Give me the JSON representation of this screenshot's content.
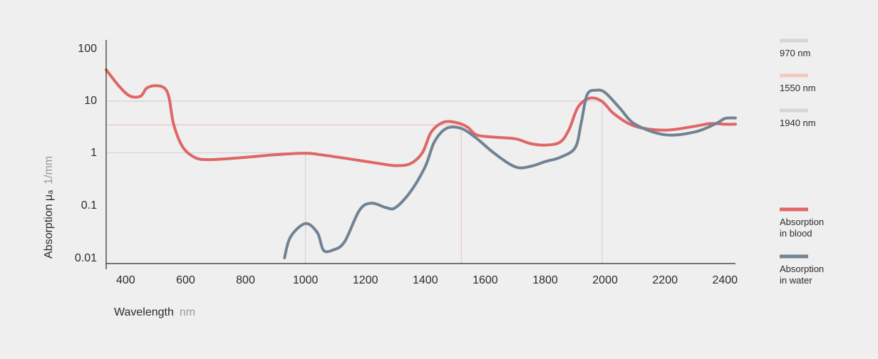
{
  "chart_data": {
    "type": "line",
    "xlabel": "Wavelength",
    "xunit": "nm",
    "ylabel": "Absorption μₐ",
    "yunit": "1/mm",
    "xlim": [
      335,
      2435
    ],
    "ylim": [
      0.01,
      100
    ],
    "yscale": "log",
    "x_ticks": [
      400,
      600,
      800,
      1000,
      1200,
      1400,
      1600,
      1800,
      2000,
      2200,
      2400
    ],
    "y_ticks": [
      {
        "value": 100,
        "label": "100"
      },
      {
        "value": 10,
        "label": "10"
      },
      {
        "value": 1,
        "label": "1"
      },
      {
        "value": 0.1,
        "label": "0.1"
      },
      {
        "value": 0.01,
        "label": "0.01"
      }
    ],
    "reference_lines": [
      {
        "name": "970 nm",
        "wavelength": 1000,
        "absorption": 1,
        "color": "#d5d5d5"
      },
      {
        "name": "1550 nm",
        "wavelength": 1520,
        "absorption": 3.4,
        "color": "#f2c8c0"
      },
      {
        "name": "1940 nm",
        "wavelength": 1990,
        "absorption": 9.6,
        "color": "#d5d5d5"
      }
    ],
    "series": [
      {
        "name": "Absorption\nin blood",
        "color": "#e06666",
        "points": [
          [
            335,
            38
          ],
          [
            380,
            18
          ],
          [
            415,
            12
          ],
          [
            450,
            12
          ],
          [
            470,
            17
          ],
          [
            500,
            19
          ],
          [
            530,
            17
          ],
          [
            545,
            11
          ],
          [
            560,
            3.5
          ],
          [
            590,
            1.3
          ],
          [
            630,
            0.82
          ],
          [
            680,
            0.74
          ],
          [
            800,
            0.82
          ],
          [
            900,
            0.92
          ],
          [
            1000,
            0.98
          ],
          [
            1050,
            0.92
          ],
          [
            1150,
            0.76
          ],
          [
            1250,
            0.62
          ],
          [
            1300,
            0.57
          ],
          [
            1350,
            0.62
          ],
          [
            1390,
            1.0
          ],
          [
            1420,
            2.5
          ],
          [
            1460,
            3.8
          ],
          [
            1500,
            3.8
          ],
          [
            1540,
            3.1
          ],
          [
            1570,
            2.2
          ],
          [
            1620,
            2.0
          ],
          [
            1700,
            1.85
          ],
          [
            1750,
            1.5
          ],
          [
            1800,
            1.4
          ],
          [
            1850,
            1.6
          ],
          [
            1880,
            2.8
          ],
          [
            1910,
            7.5
          ],
          [
            1950,
            11
          ],
          [
            1990,
            9.5
          ],
          [
            2030,
            5.5
          ],
          [
            2100,
            3.2
          ],
          [
            2200,
            2.7
          ],
          [
            2300,
            3.2
          ],
          [
            2350,
            3.6
          ],
          [
            2400,
            3.5
          ],
          [
            2435,
            3.5
          ]
        ]
      },
      {
        "name": "Absorption\nin water",
        "color": "#718393",
        "points": [
          [
            930,
            0.01
          ],
          [
            950,
            0.025
          ],
          [
            1000,
            0.045
          ],
          [
            1040,
            0.03
          ],
          [
            1060,
            0.014
          ],
          [
            1090,
            0.014
          ],
          [
            1130,
            0.02
          ],
          [
            1180,
            0.08
          ],
          [
            1220,
            0.11
          ],
          [
            1270,
            0.09
          ],
          [
            1300,
            0.09
          ],
          [
            1350,
            0.18
          ],
          [
            1400,
            0.55
          ],
          [
            1430,
            1.6
          ],
          [
            1470,
            2.9
          ],
          [
            1520,
            2.9
          ],
          [
            1570,
            1.9
          ],
          [
            1630,
            0.98
          ],
          [
            1700,
            0.54
          ],
          [
            1750,
            0.55
          ],
          [
            1800,
            0.68
          ],
          [
            1850,
            0.82
          ],
          [
            1900,
            1.25
          ],
          [
            1920,
            3.7
          ],
          [
            1940,
            12.8
          ],
          [
            1970,
            15.5
          ],
          [
            2000,
            14
          ],
          [
            2050,
            7
          ],
          [
            2100,
            3.5
          ],
          [
            2200,
            2.2
          ],
          [
            2300,
            2.5
          ],
          [
            2370,
            3.6
          ],
          [
            2400,
            4.5
          ],
          [
            2435,
            4.6
          ]
        ]
      }
    ],
    "legend": {
      "position": "right",
      "reference_entries": [
        "970 nm",
        "1550 nm",
        "1940 nm"
      ],
      "series_entries": [
        "Absorption in blood",
        "Absorption in water"
      ]
    },
    "grid": false
  }
}
